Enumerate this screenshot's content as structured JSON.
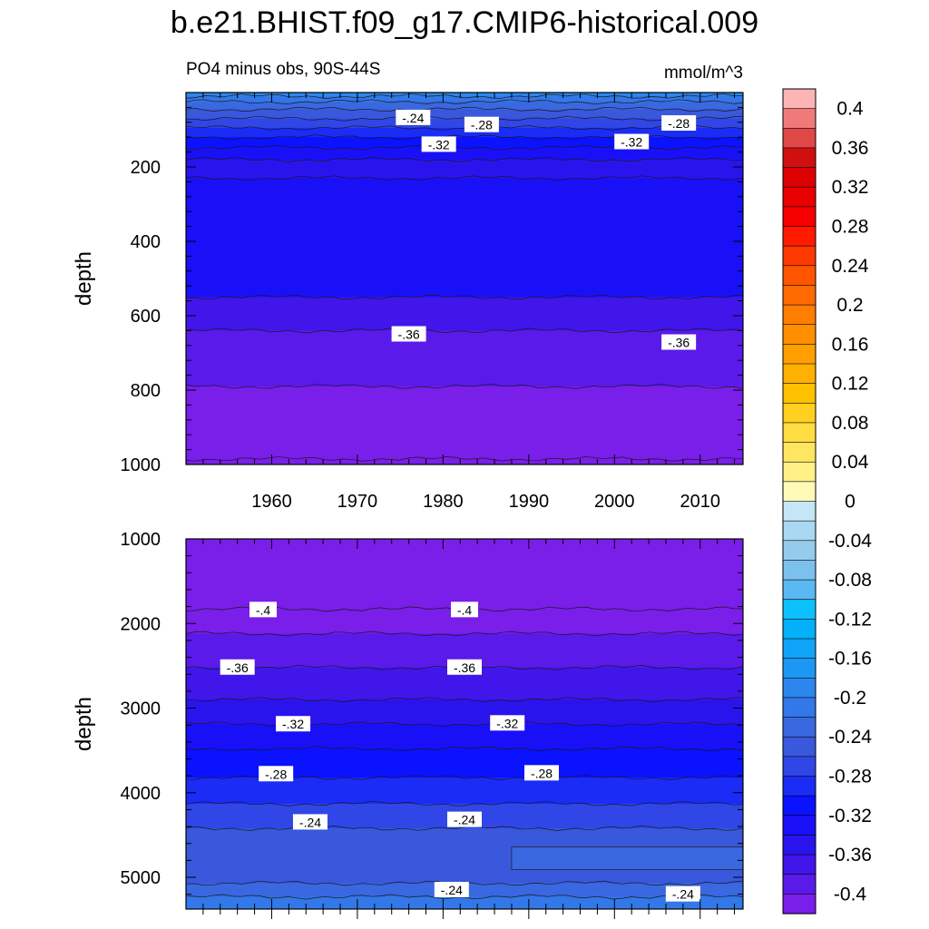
{
  "title": "b.e21.BHIST.f09_g17.CMIP6-historical.009",
  "colorbar": {
    "labels": [
      "0.4",
      "0.36",
      "0.32",
      "0.28",
      "0.24",
      "0.2",
      "0.16",
      "0.12",
      "0.08",
      "0.04",
      "0",
      "-0.04",
      "-0.08",
      "-0.12",
      "-0.16",
      "-0.2",
      "-0.24",
      "-0.28",
      "-0.32",
      "-0.36",
      "-0.4"
    ],
    "levels": [
      0.42,
      0.4,
      0.38,
      0.36,
      0.34,
      0.32,
      0.3,
      0.28,
      0.26,
      0.24,
      0.22,
      0.2,
      0.18,
      0.16,
      0.14,
      0.12,
      0.1,
      0.08,
      0.06,
      0.04,
      0.02,
      0,
      -0.02,
      -0.04,
      -0.06,
      -0.08,
      -0.1,
      -0.12,
      -0.14,
      -0.16,
      -0.18,
      -0.2,
      -0.22,
      -0.24,
      -0.26,
      -0.28,
      -0.3,
      -0.32,
      -0.34,
      -0.36,
      -0.38,
      -0.4,
      -0.42
    ],
    "colors": [
      "#fdb4b4",
      "#f07a7a",
      "#e04848",
      "#d01010",
      "#dd0000",
      "#e80000",
      "#f60000",
      "#ff1a00",
      "#ff3a00",
      "#ff5500",
      "#ff6a00",
      "#ff7e00",
      "#ff8f00",
      "#ffa000",
      "#ffb000",
      "#ffc000",
      "#ffd020",
      "#ffdc40",
      "#ffe660",
      "#fff088",
      "#fffab8",
      "#c6e6f6",
      "#aad8f2",
      "#94ccee",
      "#7cc0ee",
      "#5ab8f2",
      "#0cc0fc",
      "#04b0f8",
      "#10a4f8",
      "#1c98f4",
      "#2c86ee",
      "#3278e8",
      "#3a68e0",
      "#3a58dc",
      "#3046e6",
      "#1a2cf6",
      "#0a12ff",
      "#1a10f8",
      "#2a14ee",
      "#4016ea",
      "#5a1aea",
      "#7a1eea"
    ]
  },
  "chart_data": [
    {
      "type": "heatmap",
      "title": "PO4 minus obs, 90S-44S",
      "units": "mmol/m^3",
      "ylabel": "depth",
      "xlim": [
        1950,
        2015
      ],
      "ylim": [
        1000,
        0
      ],
      "xticks": [
        1960,
        1970,
        1980,
        1990,
        2000,
        2010
      ],
      "xtick_labels": [
        "1960",
        "1970",
        "1980",
        "1990",
        "2000",
        "2010"
      ],
      "yticks": [
        200,
        400,
        600,
        800,
        1000
      ],
      "ytick_labels": [
        "200",
        "400",
        "600",
        "800",
        "1000"
      ],
      "bands": [
        {
          "top": 0,
          "value": -0.18
        },
        {
          "top": 10,
          "value": -0.2
        },
        {
          "top": 25,
          "value": -0.22
        },
        {
          "top": 45,
          "value": -0.24
        },
        {
          "top": 70,
          "value": -0.26
        },
        {
          "top": 95,
          "value": -0.28
        },
        {
          "top": 120,
          "value": -0.3
        },
        {
          "top": 148,
          "value": -0.32
        },
        {
          "top": 180,
          "value": -0.34
        },
        {
          "top": 230,
          "value": -0.32
        },
        {
          "top": 550,
          "value": -0.36
        },
        {
          "top": 640,
          "value": -0.38
        },
        {
          "top": 790,
          "value": -0.4
        },
        {
          "top": 985,
          "value": -0.42
        }
      ],
      "contour_labels": [
        {
          "text": "-.24",
          "x": 1976.5,
          "y": 68
        },
        {
          "text": "-.28",
          "x": 1984.5,
          "y": 87
        },
        {
          "text": "-.28",
          "x": 2007.5,
          "y": 83
        },
        {
          "text": "-.32",
          "x": 1979.5,
          "y": 140
        },
        {
          "text": "-.32",
          "x": 2002,
          "y": 133
        },
        {
          "text": "-.36",
          "x": 1976,
          "y": 650
        },
        {
          "text": "-.36",
          "x": 2007.5,
          "y": 672
        }
      ]
    },
    {
      "type": "heatmap",
      "title": "",
      "ylabel": "depth",
      "xlim": [
        1950,
        2015
      ],
      "ylim": [
        5375,
        1000
      ],
      "yticks": [
        1000,
        2000,
        3000,
        4000,
        5000
      ],
      "ytick_labels": [
        "1000",
        "2000",
        "3000",
        "4000",
        "5000"
      ],
      "bands": [
        {
          "top": 1000,
          "value": -0.42
        },
        {
          "top": 1830,
          "value": -0.4
        },
        {
          "top": 2120,
          "value": -0.38
        },
        {
          "top": 2520,
          "value": -0.36
        },
        {
          "top": 2900,
          "value": -0.34
        },
        {
          "top": 3190,
          "value": -0.32
        },
        {
          "top": 3480,
          "value": -0.3
        },
        {
          "top": 3820,
          "value": -0.28
        },
        {
          "top": 4130,
          "value": -0.26
        },
        {
          "top": 4420,
          "value": -0.24
        },
        {
          "top": 5070,
          "value": -0.22
        },
        {
          "top": 5230,
          "value": -0.2
        }
      ],
      "patches": [
        {
          "value": -0.22,
          "x_start": 1988,
          "x_end": 2015,
          "y_top": 4640,
          "y_bottom": 4910
        }
      ],
      "contour_labels": [
        {
          "text": "-.4",
          "x": 1959,
          "y": 1840
        },
        {
          "text": "-.4",
          "x": 1982.5,
          "y": 1840
        },
        {
          "text": "-.36",
          "x": 1956,
          "y": 2520
        },
        {
          "text": "-.36",
          "x": 1982.5,
          "y": 2520
        },
        {
          "text": "-.32",
          "x": 1962.5,
          "y": 3190
        },
        {
          "text": "-.32",
          "x": 1987.5,
          "y": 3180
        },
        {
          "text": "-.28",
          "x": 1960.5,
          "y": 3780
        },
        {
          "text": "-.28",
          "x": 1991.5,
          "y": 3770
        },
        {
          "text": "-.24",
          "x": 1964.5,
          "y": 4350
        },
        {
          "text": "-.24",
          "x": 1982.5,
          "y": 4320
        },
        {
          "text": "-.24",
          "x": 1981,
          "y": 5150
        },
        {
          "text": "-.24",
          "x": 2008,
          "y": 5200
        }
      ]
    }
  ]
}
